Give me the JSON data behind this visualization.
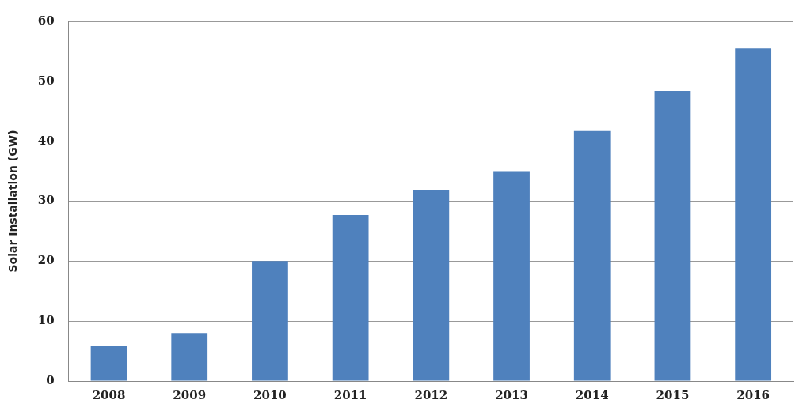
{
  "chart_data": {
    "type": "bar",
    "ylabel": "Solar Installation (GW)",
    "categories": [
      "2008",
      "2009",
      "2010",
      "2011",
      "2012",
      "2013",
      "2014",
      "2015",
      "2016"
    ],
    "values": [
      5.8,
      8,
      20,
      27.7,
      31.9,
      35,
      41.7,
      48.4,
      55.5
    ],
    "color": "#4f81bd",
    "ylim": [
      0,
      60
    ],
    "yticks": [
      0,
      10,
      20,
      30,
      40,
      50,
      60
    ],
    "grid": "y"
  }
}
